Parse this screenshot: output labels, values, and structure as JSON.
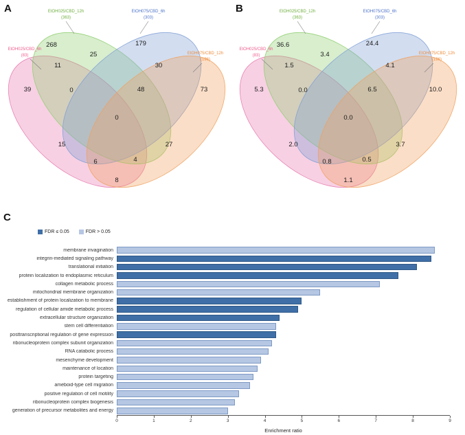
{
  "panels": {
    "a": "A",
    "b": "B",
    "c": "C"
  },
  "chart_data": [
    {
      "type": "venn",
      "panel": "A",
      "value_kind": "counts",
      "sets": [
        {
          "name": "EtOH025/CBD_6h",
          "total": "(83)",
          "fill": "#e879ae",
          "label_color": "#ef5d8f"
        },
        {
          "name": "EtOH025/CBD_12h",
          "total": "(363)",
          "fill": "#8fce6f",
          "label_color": "#6fae3f"
        },
        {
          "name": "EtOH075/CBD_6h",
          "total": "(303)",
          "fill": "#7f9fd4",
          "label_color": "#4f74c9"
        },
        {
          "name": "EtOH075/CBD_12h",
          "total": "(196)",
          "fill": "#f0a15f",
          "label_color": "#ee8d3e"
        }
      ],
      "regions": {
        "top_left": "268",
        "top_center": "25",
        "top_right": "179",
        "upper_left": "11",
        "upper_right": "30",
        "far_left": "39",
        "mid_left": "0",
        "mid_right": "48",
        "far_right": "73",
        "center": "0",
        "lower_left": "15",
        "lower_right": "27",
        "bottom_left_inner": "6",
        "bottom_right_inner": "4",
        "bottom_center": "8"
      }
    },
    {
      "type": "venn",
      "panel": "B",
      "value_kind": "percentages",
      "sets": [
        {
          "name": "EtOH025/CBD_6h",
          "total": "(83)",
          "fill": "#e879ae",
          "label_color": "#ef5d8f"
        },
        {
          "name": "EtOH025/CBD_12h",
          "total": "(363)",
          "fill": "#8fce6f",
          "label_color": "#6fae3f"
        },
        {
          "name": "EtOH075/CBD_6h",
          "total": "(303)",
          "fill": "#7f9fd4",
          "label_color": "#4f74c9"
        },
        {
          "name": "EtOH075/CBD_12h",
          "total": "(196)",
          "fill": "#f0a15f",
          "label_color": "#ee8d3e"
        }
      ],
      "regions": {
        "top_left": "36.6",
        "top_center": "3.4",
        "top_right": "24.4",
        "upper_left": "1.5",
        "upper_right": "4.1",
        "far_left": "5.3",
        "mid_left": "0.0",
        "mid_right": "6.5",
        "far_right": "10.0",
        "center": "0.0",
        "lower_left": "2.0",
        "lower_right": "3.7",
        "bottom_left_inner": "0.8",
        "bottom_right_inner": "0.5",
        "bottom_center": "1.1"
      }
    },
    {
      "type": "bar",
      "orientation": "horizontal",
      "xlabel": "Enrichment ratio",
      "xlim": [
        0,
        9
      ],
      "xticks": [
        "0",
        "1",
        "2",
        "3",
        "4",
        "5",
        "6",
        "7",
        "8",
        "9"
      ],
      "legend": [
        {
          "label": "FDR ≤ 0.05",
          "color": "#3f6fa6"
        },
        {
          "label": "FDR > 0.05",
          "color": "#b5c7e3"
        }
      ],
      "categories": [
        "membrane invagination",
        "integrin-mediated signaling pathway",
        "translational initiation",
        "protein localization to endoplasmic reticulum",
        "collagen metabolic process",
        "mitochondrial membrane organization",
        "establishment of protein localization to membrane",
        "regulation of cellular amide metabolic process",
        "extracellular structure organization",
        "stem cell differentiation",
        "posttranscriptional regulation of gene expression",
        "ribonucleoprotein complex subunit organization",
        "RNA catabolic process",
        "mesenchyme development",
        "maintenance of location",
        "protein targeting",
        "ameboid-type cell migration",
        "positive regulation of cell motility",
        "ribonucleoprotein complex biogenesis",
        "generation of precursor metabolites and energy"
      ],
      "values": [
        8.6,
        8.5,
        8.1,
        7.6,
        7.1,
        5.5,
        5.0,
        4.9,
        4.4,
        4.3,
        4.3,
        4.2,
        4.1,
        3.9,
        3.8,
        3.7,
        3.6,
        3.3,
        3.2,
        3.0
      ],
      "significant": [
        false,
        true,
        true,
        true,
        false,
        false,
        true,
        true,
        true,
        false,
        true,
        false,
        false,
        false,
        false,
        false,
        false,
        false,
        false,
        false
      ]
    }
  ]
}
